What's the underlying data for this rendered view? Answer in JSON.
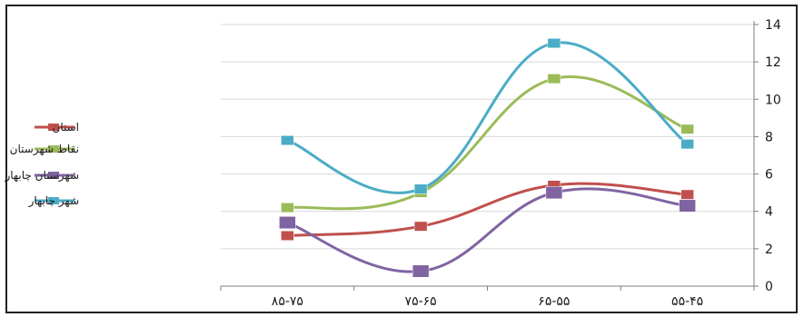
{
  "chart_data": {
    "type": "line",
    "title": "",
    "xlabel": "",
    "ylabel": "",
    "categories": [
      "۸۵-۷۵",
      "۷۵-۶۵",
      "۶۵-۵۵",
      "۵۵-۴۵"
    ],
    "ylim": [
      0,
      14
    ],
    "yticks": [
      0,
      2,
      4,
      6,
      8,
      10,
      12,
      14
    ],
    "ytick_labels": [
      "0",
      "2",
      "4",
      "6",
      "8",
      "10",
      "12",
      "14"
    ],
    "grid": true,
    "y_axis_side": "right",
    "legend_position": "left",
    "smooth": true,
    "series": [
      {
        "name": "استان",
        "color": "#c0504d",
        "values": [
          2.7,
          3.2,
          5.4,
          4.9
        ]
      },
      {
        "name": "نقاط شهرستان",
        "color": "#9bbb59",
        "values": [
          4.2,
          5.0,
          11.1,
          8.4
        ]
      },
      {
        "name": "شهرستان چابهار",
        "color": "#8064a2",
        "values": [
          3.4,
          0.8,
          5.0,
          4.3
        ]
      },
      {
        "name": "شهر چابهار",
        "color": "#4bacc6",
        "values": [
          7.8,
          5.2,
          13.0,
          7.6
        ]
      }
    ]
  }
}
